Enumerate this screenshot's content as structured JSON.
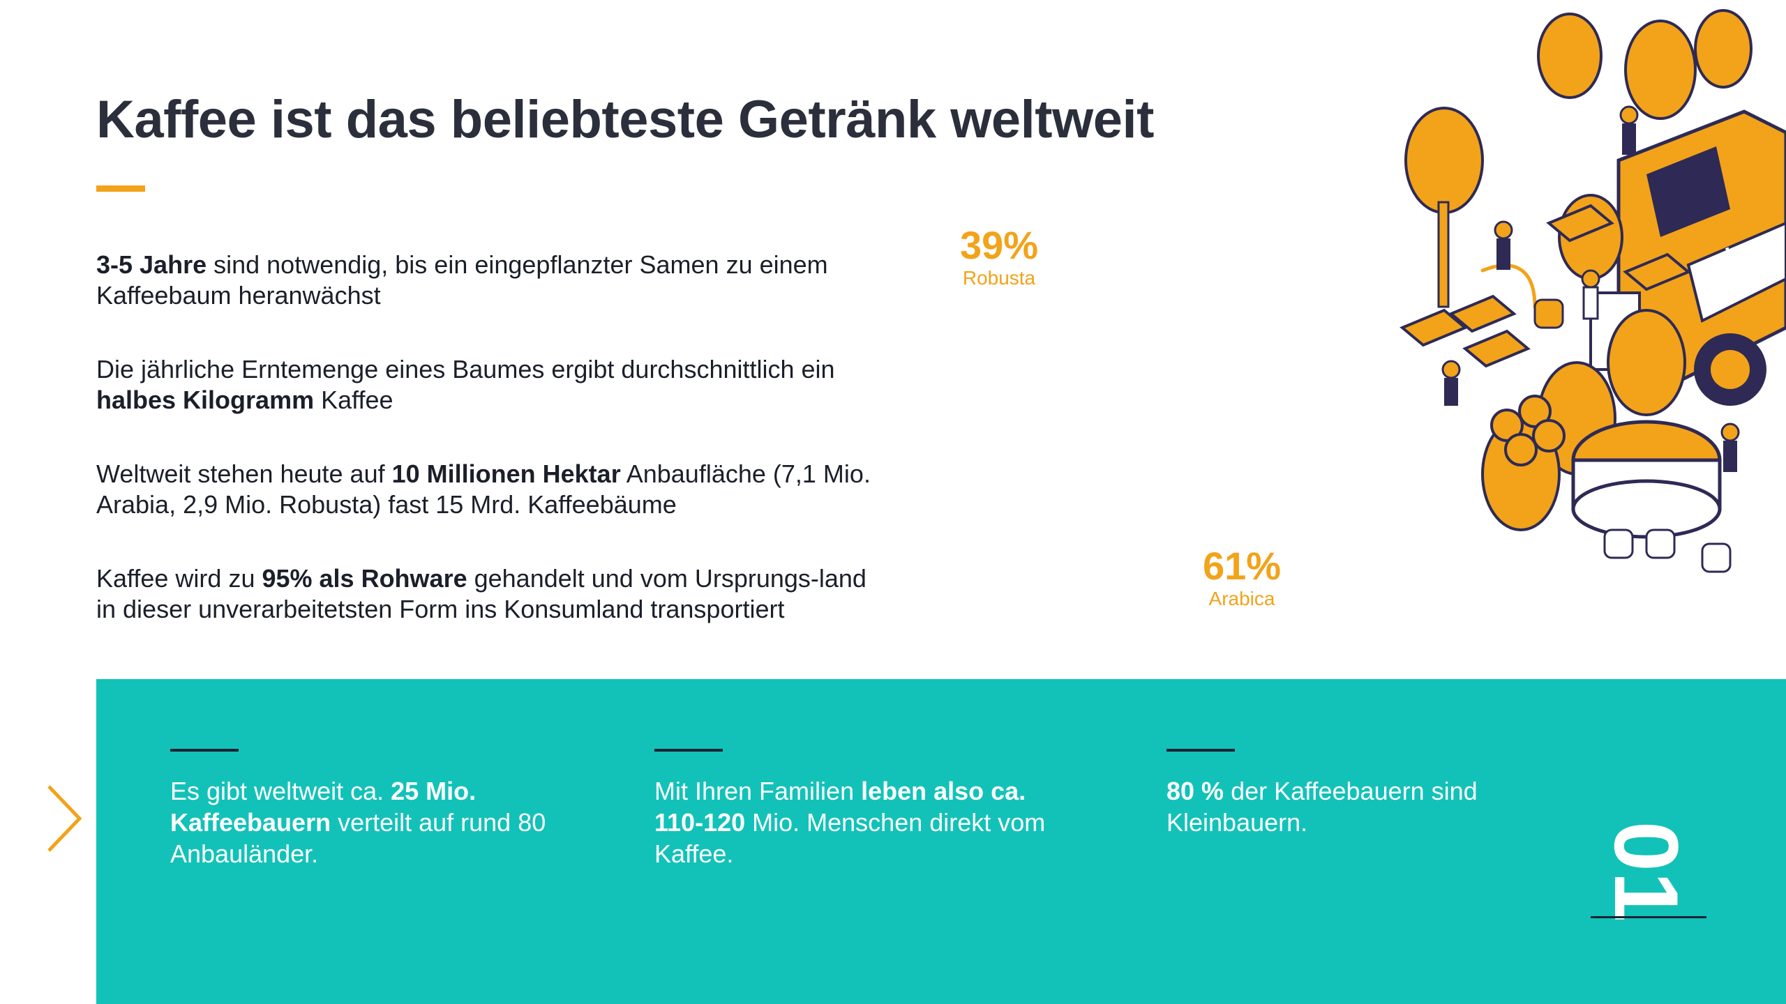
{
  "header": {
    "title": "Kaffee ist das beliebteste Getränk weltweit"
  },
  "facts": [
    {
      "pre": "",
      "bold": "3-5 Jahre",
      "post": " sind notwendig, bis ein eingepflanzter Samen zu einem Kaffeebaum heranwächst"
    },
    {
      "pre": "Die jährliche Erntemenge eines Baumes ergibt durchschnittlich ein ",
      "bold": "halbes Kilogramm",
      "post": " Kaffee"
    },
    {
      "pre": "Weltweit stehen heute auf ",
      "bold": "10 Millionen Hektar",
      "post": " Anbaufläche (7,1 Mio. Arabia, 2,9 Mio. Robusta) fast 15 Mrd. Kaffeebäume"
    },
    {
      "pre": "Kaffee wird zu ",
      "bold": "95% als Rohware",
      "post": " gehandelt und vom Ursprungs-land in dieser unverarbeitetsten Form ins Konsumland transportiert"
    }
  ],
  "stats": {
    "robusta": {
      "value": "39%",
      "label": "Robusta"
    },
    "arabica": {
      "value": "61%",
      "label": "Arabica"
    }
  },
  "band": {
    "col1": {
      "pre": "Es gibt weltweit ca. ",
      "bold": "25 Mio. Kaffeebauern",
      "post": " verteilt auf rund 80 Anbauländer."
    },
    "col2": {
      "pre": "Mit Ihren Familien ",
      "bold": "leben also ca. 110-120",
      "post": " Mio. Menschen direkt vom Kaffee."
    },
    "col3": {
      "pre": "",
      "bold": "80 %",
      "post": " der Kaffeebauern sind Kleinbauern."
    }
  },
  "page_number": "01",
  "colors": {
    "accent": "#f2a31a",
    "teal": "#12c2b8",
    "navy": "#2e2a55",
    "text": "#1b1f2a"
  },
  "icons": {
    "next": "chevron-right-icon"
  }
}
